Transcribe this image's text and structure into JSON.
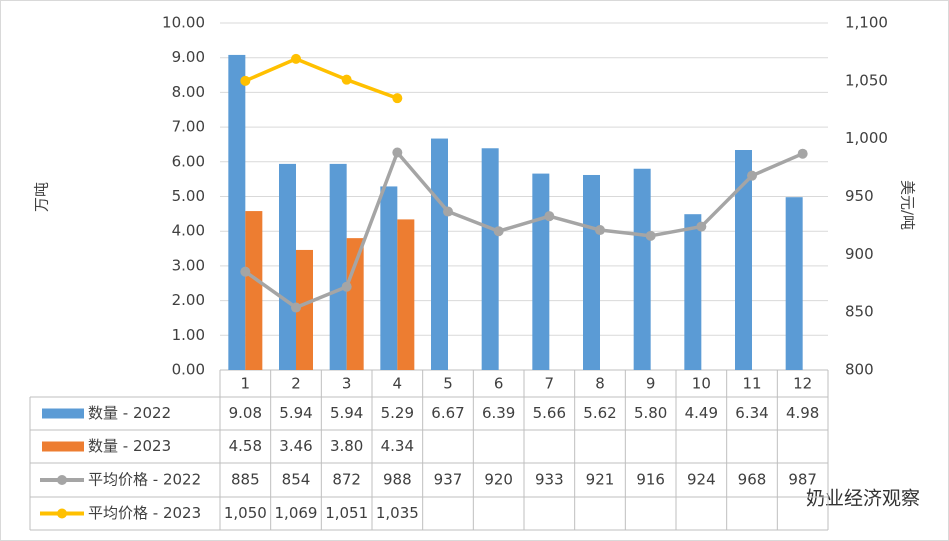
{
  "chart_data": {
    "type": "bar-line",
    "categories": [
      "1",
      "2",
      "3",
      "4",
      "5",
      "6",
      "7",
      "8",
      "9",
      "10",
      "11",
      "12"
    ],
    "y_label": "万吨",
    "y2_label": "美元/吨",
    "ylim": [
      0,
      10
    ],
    "yticks": [
      {
        "value": 0,
        "label": "0.00"
      },
      {
        "value": 1,
        "label": "1.00"
      },
      {
        "value": 2,
        "label": "2.00"
      },
      {
        "value": 3,
        "label": "3.00"
      },
      {
        "value": 4,
        "label": "4.00"
      },
      {
        "value": 5,
        "label": "5.00"
      },
      {
        "value": 6,
        "label": "6.00"
      },
      {
        "value": 7,
        "label": "7.00"
      },
      {
        "value": 8,
        "label": "8.00"
      },
      {
        "value": 9,
        "label": "9.00"
      },
      {
        "value": 10,
        "label": "10.00"
      }
    ],
    "y2lim": [
      800,
      1100
    ],
    "y2ticks": [
      800,
      850,
      900,
      950,
      {
        "value": 1000,
        "label": "1,000"
      },
      {
        "value": 1050,
        "label": "1,050"
      },
      {
        "value": 1100,
        "label": "1,100"
      }
    ],
    "grid": true,
    "series": [
      {
        "name": "数量 - 2022",
        "type": "bar",
        "color": "#5b9bd5",
        "values": [
          9.08,
          5.94,
          5.94,
          5.29,
          6.67,
          6.39,
          5.66,
          5.62,
          5.8,
          4.49,
          6.34,
          4.98
        ],
        "value_labels": [
          "9.08",
          "5.94",
          "5.94",
          "5.29",
          "6.67",
          "6.39",
          "5.66",
          "5.62",
          "5.80",
          "4.49",
          "6.34",
          "4.98"
        ]
      },
      {
        "name": "数量 - 2023",
        "type": "bar",
        "color": "#ed7d31",
        "values": [
          4.58,
          3.46,
          3.8,
          4.34,
          null,
          null,
          null,
          null,
          null,
          null,
          null,
          null
        ],
        "value_labels": [
          "4.58",
          "3.46",
          "3.80",
          "4.34",
          null,
          null,
          null,
          null,
          null,
          null,
          null,
          null
        ]
      },
      {
        "name": "平均价格 - 2022",
        "type": "line",
        "axis": "y2",
        "color": "#a5a5a5",
        "values": [
          885,
          854,
          872,
          988,
          937,
          920,
          933,
          921,
          916,
          924,
          968,
          987
        ],
        "value_labels": [
          "885",
          "854",
          "872",
          "988",
          "937",
          "920",
          "933",
          "921",
          "916",
          "924",
          "968",
          "987"
        ]
      },
      {
        "name": "平均价格 - 2023",
        "type": "line",
        "axis": "y2",
        "color": "#ffc000",
        "values": [
          1050,
          1069,
          1051,
          1035,
          null,
          null,
          null,
          null,
          null,
          null,
          null,
          null
        ],
        "value_labels": [
          "1,050",
          "1,069",
          "1,051",
          "1,035",
          null,
          null,
          null,
          null,
          null,
          null,
          null,
          null
        ]
      }
    ],
    "watermark": "奶业经济观察"
  }
}
